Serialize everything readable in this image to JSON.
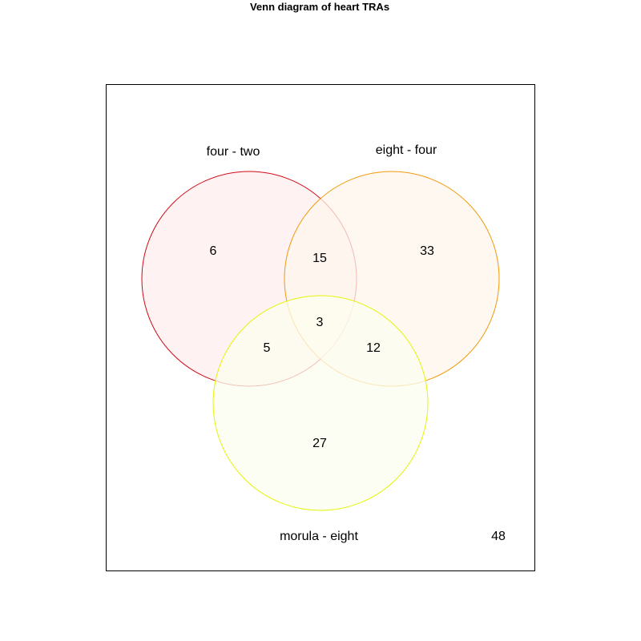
{
  "title": "Venn diagram of heart TRAs",
  "sets": [
    {
      "name": "four - two",
      "stroke": "#d20a14",
      "fill": "#fdeeee"
    },
    {
      "name": "eight - four",
      "stroke": "#f09a0c",
      "fill": "#fef5ec"
    },
    {
      "name": "morula - eight",
      "stroke": "#e4f50a",
      "fill": "#fcfeef"
    }
  ],
  "counts": {
    "only_four_two": "6",
    "four_two_and_eight_four": "15",
    "only_eight_four": "33",
    "all_three": "3",
    "four_two_and_morula_eight": "5",
    "eight_four_and_morula_eight": "12",
    "only_morula_eight": "27",
    "outside": "48"
  }
}
